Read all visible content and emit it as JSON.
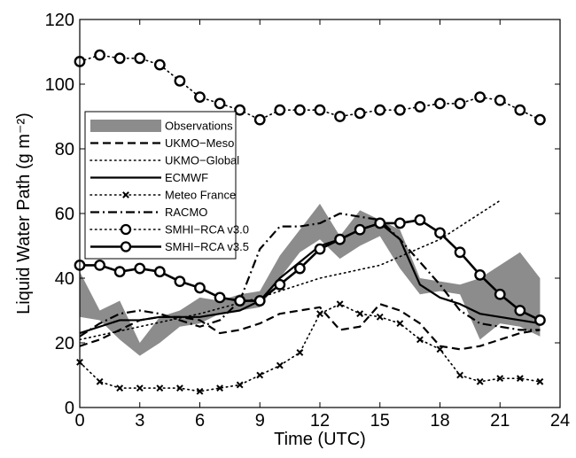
{
  "chart_data": {
    "type": "line",
    "xlabel": "Time (UTC)",
    "ylabel": "Liquid Water Path (g m⁻²)",
    "xlim": [
      0,
      24
    ],
    "ylim": [
      0,
      120
    ],
    "xticks": [
      0,
      3,
      6,
      9,
      12,
      15,
      18,
      21,
      24
    ],
    "yticks": [
      0,
      20,
      40,
      60,
      80,
      100,
      120
    ],
    "grid": false,
    "legend_position": "upper-left",
    "observations": {
      "name": "Observations",
      "color": "#8c8c8c",
      "x": [
        0,
        1,
        2,
        3,
        4,
        5,
        6,
        7,
        8,
        9,
        10,
        11,
        12,
        13,
        14,
        15,
        16,
        17,
        18,
        19,
        20,
        21,
        22,
        23
      ],
      "lower": [
        28,
        27,
        21,
        16,
        20,
        25,
        26,
        29,
        30,
        31,
        40,
        48,
        52,
        46,
        50,
        53,
        43,
        35,
        36,
        35,
        21,
        26,
        25,
        22
      ],
      "upper": [
        42,
        30,
        33,
        20,
        28,
        30,
        34,
        33,
        35,
        36,
        47,
        55,
        63,
        53,
        61,
        58,
        55,
        40,
        39,
        38,
        40,
        44,
        48,
        40
      ]
    },
    "series": [
      {
        "name": "UKMO−Meso",
        "style": "dashed",
        "marker": "none",
        "x": [
          0,
          1,
          2,
          3,
          4,
          5,
          6,
          7,
          8,
          9,
          10,
          11,
          12,
          13,
          14,
          15,
          16,
          17,
          18,
          19,
          20,
          21,
          22,
          23
        ],
        "values": [
          19,
          21,
          24,
          27,
          28,
          28,
          27,
          23,
          24,
          26,
          29,
          30,
          31,
          24,
          25,
          32,
          30,
          26,
          19,
          18,
          19,
          21,
          23,
          24
        ]
      },
      {
        "name": "UKMO−Global",
        "style": "dotted",
        "marker": "none",
        "x": [
          0,
          3,
          6,
          9,
          12,
          15,
          18,
          21
        ],
        "values": [
          21,
          25,
          29,
          34,
          40,
          44,
          52,
          64
        ]
      },
      {
        "name": "ECMWF",
        "style": "solid",
        "marker": "none",
        "x": [
          0,
          1,
          2,
          3,
          4,
          5,
          6,
          7,
          8,
          9,
          10,
          11,
          12,
          13,
          14,
          15,
          16,
          17,
          18,
          19,
          20,
          21,
          22,
          23
        ],
        "values": [
          23,
          25,
          27,
          27,
          28,
          28,
          28,
          29,
          30,
          33,
          40,
          45,
          50,
          52,
          55,
          57,
          52,
          38,
          34,
          32,
          29,
          28,
          27,
          26
        ]
      },
      {
        "name": "Meteo France",
        "style": "dotted",
        "marker": "x",
        "x": [
          0,
          1,
          2,
          3,
          4,
          5,
          6,
          7,
          8,
          9,
          10,
          11,
          12,
          13,
          14,
          15,
          16,
          17,
          18,
          19,
          20,
          21,
          22,
          23
        ],
        "values": [
          14,
          8,
          6,
          6,
          6,
          6,
          5,
          6,
          7,
          10,
          13,
          17,
          29,
          32,
          29,
          28,
          26,
          21,
          18,
          10,
          8,
          9,
          9,
          8
        ]
      },
      {
        "name": "RACMO",
        "style": "dashdot",
        "marker": "none",
        "x": [
          0,
          1,
          2,
          3,
          4,
          5,
          6,
          7,
          8,
          9,
          10,
          11,
          12,
          13,
          14,
          15,
          16,
          17,
          18,
          19,
          20,
          21,
          22,
          23
        ],
        "values": [
          22,
          26,
          29,
          30,
          29,
          27,
          25,
          27,
          33,
          49,
          56,
          56,
          57,
          60,
          59,
          58,
          52,
          45,
          38,
          30,
          26,
          25,
          24,
          24
        ]
      },
      {
        "name": "SMHI−RCA v3.0",
        "style": "dotted",
        "marker": "circle",
        "x": [
          0,
          1,
          2,
          3,
          4,
          5,
          6,
          7,
          8,
          9,
          10,
          11,
          12,
          13,
          14,
          15,
          16,
          17,
          18,
          19,
          20,
          21,
          22,
          23
        ],
        "values": [
          107,
          109,
          108,
          108,
          106,
          101,
          96,
          94,
          92,
          89,
          92,
          92,
          92,
          90,
          91,
          92,
          92,
          93,
          94,
          94,
          96,
          95,
          92,
          89
        ]
      },
      {
        "name": "SMHI−RCA v3.5",
        "style": "solid",
        "marker": "circle",
        "x": [
          0,
          1,
          2,
          3,
          4,
          5,
          6,
          7,
          8,
          9,
          10,
          11,
          12,
          13,
          14,
          15,
          16,
          17,
          18,
          19,
          20,
          21,
          22,
          23
        ],
        "values": [
          44,
          44,
          42,
          43,
          42,
          39,
          37,
          34,
          33,
          33,
          38,
          43,
          49,
          52,
          55,
          57,
          57,
          58,
          54,
          48,
          41,
          35,
          30,
          27
        ]
      }
    ]
  }
}
